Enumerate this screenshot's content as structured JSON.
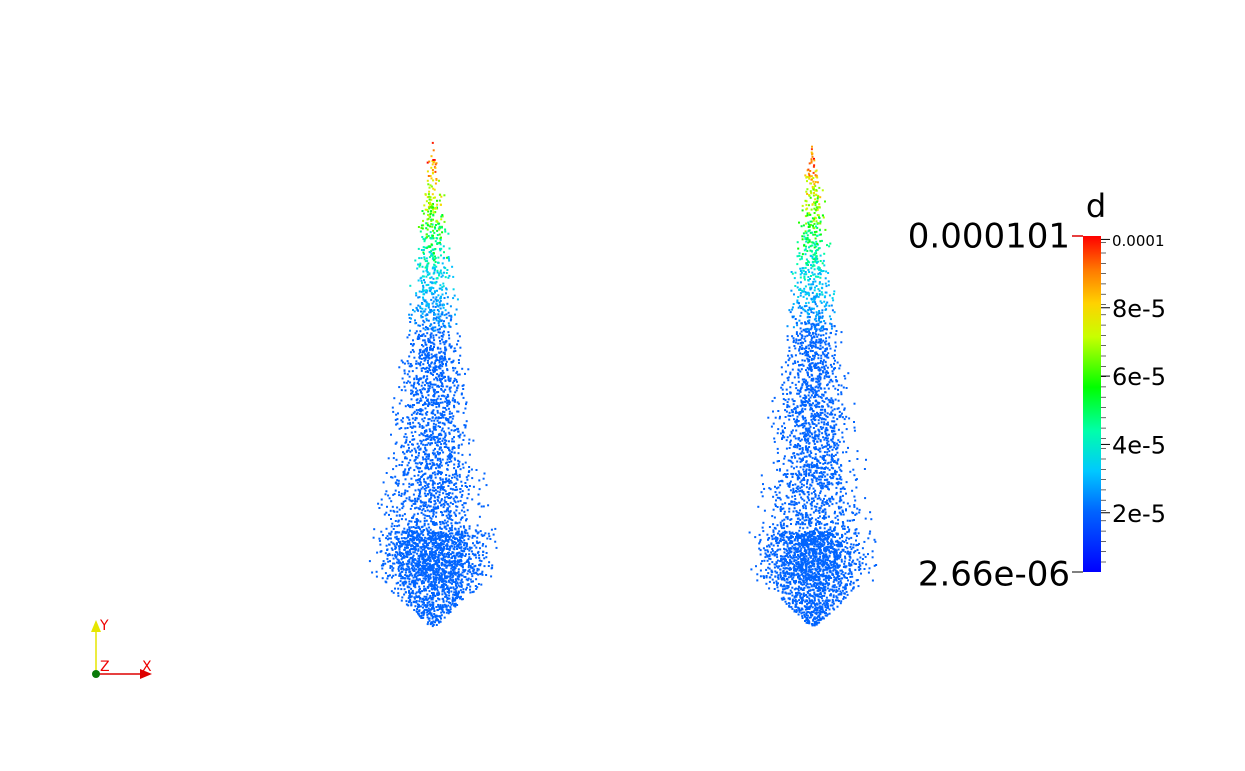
{
  "colorbar": {
    "title": "d",
    "range": [
      {
        "value": 2.66e-06,
        "label": "2.66e-06"
      },
      {
        "value": 0.000101,
        "label": "0.000101"
      }
    ],
    "ticks": [
      {
        "value": 0.0001,
        "label": "0.0001"
      },
      {
        "value": 8e-05,
        "label": "8e-5"
      },
      {
        "value": 6e-05,
        "label": "6e-5"
      },
      {
        "value": 4e-05,
        "label": "4e-5"
      },
      {
        "value": 2e-05,
        "label": "2e-5"
      }
    ]
  },
  "axes": {
    "y": "Y",
    "z": "Z",
    "x": "X"
  }
}
